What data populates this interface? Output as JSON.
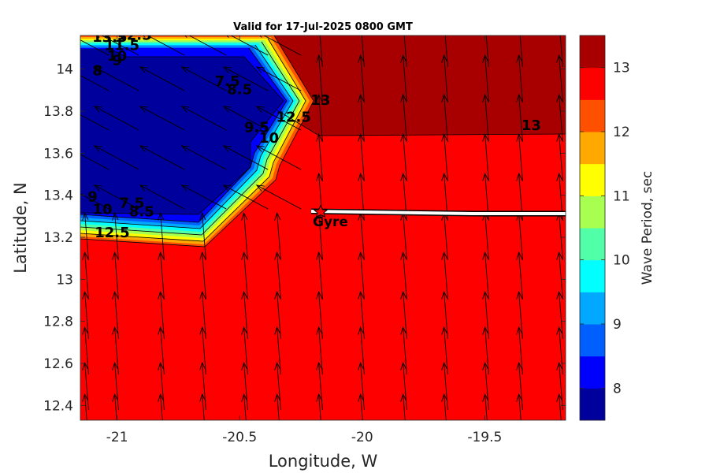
{
  "chart_data": {
    "type": "heatmap",
    "title": "Valid for 17-Jul-2025 0800 GMT",
    "xlabel": "Longitude, W",
    "ylabel": "Latitude, N",
    "xlim": [
      -21.15,
      -19.17
    ],
    "ylim": [
      12.33,
      14.16
    ],
    "xticks": [
      -21,
      -20.5,
      -20,
      -19.5
    ],
    "xtick_labels": [
      "-21",
      "-20.5",
      "-20",
      "-19.5"
    ],
    "yticks": [
      12.4,
      12.6,
      12.8,
      13,
      13.2,
      13.4,
      13.6,
      13.8,
      14
    ],
    "ytick_labels": [
      "12.4",
      "12.6",
      "12.8",
      "13",
      "13.2",
      "13.4",
      "13.6",
      "13.8",
      "14"
    ],
    "colorbar": {
      "label": "Wave Period, sec",
      "min": 7.5,
      "max": 13.5,
      "ticks": [
        8,
        9,
        10,
        11,
        12,
        13
      ],
      "tick_labels": [
        "8",
        "9",
        "10",
        "11",
        "12",
        "13"
      ],
      "colors": [
        "#00009c",
        "#0000ff",
        "#0060ff",
        "#00a8ff",
        "#00ffff",
        "#50ffa8",
        "#a8ff50",
        "#ffff00",
        "#ffa800",
        "#ff5000",
        "#ff0000",
        "#a80000"
      ]
    },
    "regions": [
      {
        "name": "period-13.5-zone",
        "value": 13.25
      },
      {
        "name": "period-13-zone",
        "value": 12.75
      },
      {
        "name": "low-period-core",
        "value": 7.75
      }
    ],
    "contour_labels": [
      {
        "text": "13",
        "lon": -19.31,
        "lat": 13.71
      },
      {
        "text": "13",
        "lon": -20.17,
        "lat": 13.83
      },
      {
        "text": "12.5",
        "lon": -20.28,
        "lat": 13.75
      },
      {
        "text": "7.5",
        "lon": -20.55,
        "lat": 13.92
      },
      {
        "text": "8.5",
        "lon": -20.5,
        "lat": 13.88
      },
      {
        "text": "9.5",
        "lon": -20.43,
        "lat": 13.7
      },
      {
        "text": "10",
        "lon": -20.38,
        "lat": 13.65
      },
      {
        "text": "13.5",
        "lon": -21.03,
        "lat": 14.13
      },
      {
        "text": "12.5",
        "lon": -20.93,
        "lat": 14.14
      },
      {
        "text": "11.5",
        "lon": -20.98,
        "lat": 14.09
      },
      {
        "text": "10",
        "lon": -21.0,
        "lat": 14.04
      },
      {
        "text": "8",
        "lon": -21.08,
        "lat": 13.97
      },
      {
        "text": "9",
        "lon": -21.0,
        "lat": 14.02
      },
      {
        "text": "7.5",
        "lon": -20.94,
        "lat": 13.34
      },
      {
        "text": "8.5",
        "lon": -20.9,
        "lat": 13.3
      },
      {
        "text": "9",
        "lon": -21.1,
        "lat": 13.37
      },
      {
        "text": "10",
        "lon": -21.06,
        "lat": 13.31
      },
      {
        "text": "12.5",
        "lon": -21.02,
        "lat": 13.2
      }
    ],
    "track": {
      "name": "Gyre",
      "start_lon": -20.2,
      "start_lat": 13.32,
      "end_lon": -19.17,
      "end_lat": 13.31
    },
    "vector_field": {
      "type": "quiver",
      "quantity": "wave direction"
    }
  }
}
